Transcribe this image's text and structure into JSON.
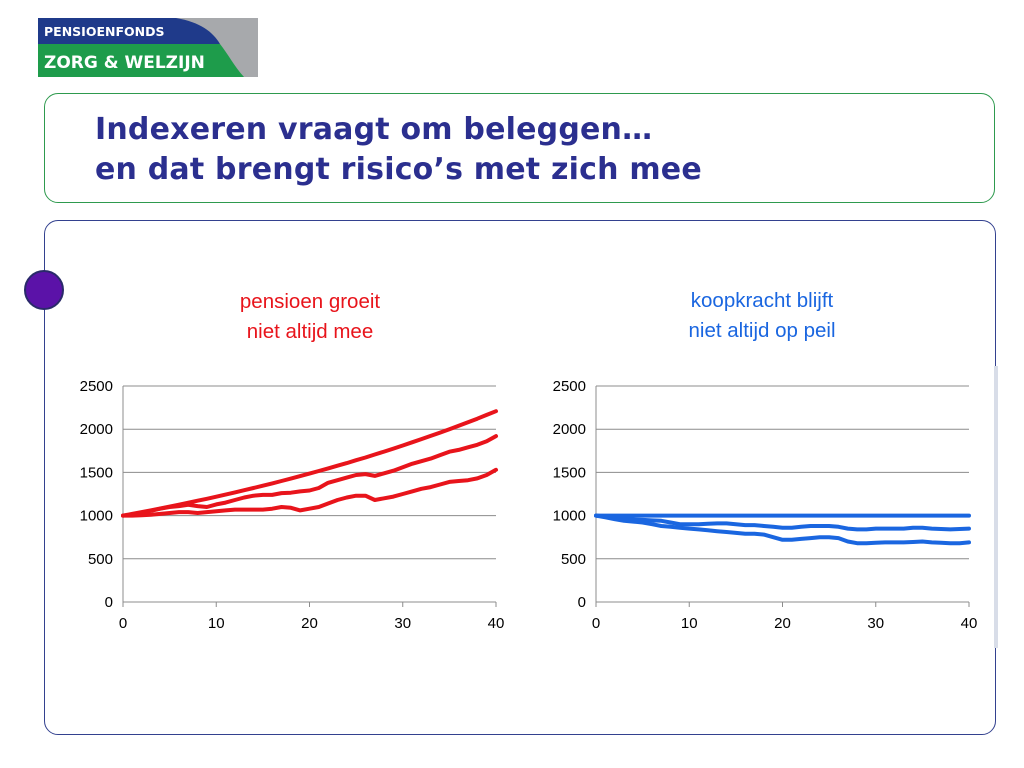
{
  "logo": {
    "line1": "PENSIOENFONDS",
    "line2": "ZORG & WELZIJN",
    "colors": {
      "navy": "#1f3a8a",
      "green": "#1e9c4b",
      "gray": "#a7a9ac"
    }
  },
  "slide": {
    "title_line1": "Indexeren vraagt om beleggen…",
    "title_line2": "en dat brengt risico’s met zich mee",
    "title_color": "#2b2f8f"
  },
  "chart_data": [
    {
      "type": "line",
      "title_lines": [
        "pensioen groeit",
        "niet altijd mee"
      ],
      "title_color": "#e8141b",
      "line_color": "#e8141b",
      "xlabel": "",
      "ylabel": "",
      "xlim": [
        0,
        40
      ],
      "ylim": [
        0,
        2500
      ],
      "xticks": [
        0,
        10,
        20,
        30,
        40
      ],
      "yticks": [
        0,
        500,
        1000,
        1500,
        2000,
        2500
      ],
      "grid": true,
      "x": [
        0,
        1,
        2,
        3,
        4,
        5,
        6,
        7,
        8,
        9,
        10,
        11,
        12,
        13,
        14,
        15,
        16,
        17,
        18,
        19,
        20,
        21,
        22,
        23,
        24,
        25,
        26,
        27,
        28,
        29,
        30,
        31,
        32,
        33,
        34,
        35,
        36,
        37,
        38,
        39,
        40
      ],
      "series": [
        {
          "values": [
            1000,
            1020,
            1040,
            1061,
            1082,
            1104,
            1126,
            1149,
            1172,
            1195,
            1219,
            1243,
            1268,
            1294,
            1319,
            1346,
            1373,
            1400,
            1428,
            1457,
            1486,
            1516,
            1546,
            1577,
            1608,
            1641,
            1673,
            1707,
            1741,
            1776,
            1811,
            1848,
            1885,
            1922,
            1961,
            2000,
            2040,
            2081,
            2122,
            2165,
            2208
          ]
        },
        {
          "values": [
            1000,
            1010,
            1030,
            1055,
            1080,
            1100,
            1110,
            1125,
            1110,
            1100,
            1130,
            1150,
            1180,
            1210,
            1230,
            1240,
            1240,
            1260,
            1265,
            1280,
            1290,
            1320,
            1380,
            1410,
            1440,
            1470,
            1480,
            1460,
            1490,
            1520,
            1560,
            1600,
            1630,
            1660,
            1700,
            1740,
            1760,
            1790,
            1820,
            1860,
            1920
          ]
        },
        {
          "values": [
            1000,
            1000,
            1005,
            1010,
            1020,
            1030,
            1040,
            1040,
            1030,
            1040,
            1050,
            1060,
            1070,
            1070,
            1070,
            1070,
            1080,
            1100,
            1090,
            1060,
            1080,
            1100,
            1140,
            1180,
            1210,
            1230,
            1230,
            1180,
            1200,
            1220,
            1250,
            1280,
            1310,
            1330,
            1360,
            1390,
            1400,
            1410,
            1430,
            1470,
            1530
          ]
        }
      ]
    },
    {
      "type": "line",
      "title_lines": [
        "koopkracht blijft",
        "niet altijd op peil"
      ],
      "title_color": "#1a66e0",
      "line_color": "#1a66e0",
      "xlabel": "",
      "ylabel": "",
      "xlim": [
        0,
        40
      ],
      "ylim": [
        0,
        2500
      ],
      "xticks": [
        0,
        10,
        20,
        30,
        40
      ],
      "yticks": [
        0,
        500,
        1000,
        1500,
        2000,
        2500
      ],
      "grid": true,
      "x": [
        0,
        1,
        2,
        3,
        4,
        5,
        6,
        7,
        8,
        9,
        10,
        11,
        12,
        13,
        14,
        15,
        16,
        17,
        18,
        19,
        20,
        21,
        22,
        23,
        24,
        25,
        26,
        27,
        28,
        29,
        30,
        31,
        32,
        33,
        34,
        35,
        36,
        37,
        38,
        39,
        40
      ],
      "series": [
        {
          "values": [
            1000,
            1000,
            1000,
            1000,
            1000,
            1000,
            1000,
            1000,
            1000,
            1000,
            1000,
            1000,
            1000,
            1000,
            1000,
            1000,
            1000,
            1000,
            1000,
            1000,
            1000,
            1000,
            1000,
            1000,
            1000,
            1000,
            1000,
            1000,
            1000,
            1000,
            1000,
            1000,
            1000,
            1000,
            1000,
            1000,
            1000,
            1000,
            1000,
            1000,
            1000
          ]
        },
        {
          "values": [
            1000,
            990,
            975,
            960,
            955,
            950,
            945,
            940,
            920,
            900,
            900,
            900,
            905,
            910,
            910,
            900,
            890,
            890,
            880,
            870,
            860,
            860,
            870,
            880,
            880,
            880,
            870,
            850,
            840,
            840,
            850,
            850,
            850,
            850,
            860,
            860,
            850,
            845,
            840,
            845,
            850
          ]
        },
        {
          "values": [
            1000,
            980,
            960,
            940,
            930,
            920,
            900,
            880,
            870,
            860,
            850,
            840,
            830,
            820,
            810,
            800,
            790,
            790,
            780,
            750,
            720,
            720,
            730,
            740,
            750,
            750,
            740,
            700,
            680,
            680,
            685,
            690,
            690,
            690,
            695,
            700,
            690,
            685,
            680,
            680,
            690
          ]
        }
      ]
    }
  ]
}
